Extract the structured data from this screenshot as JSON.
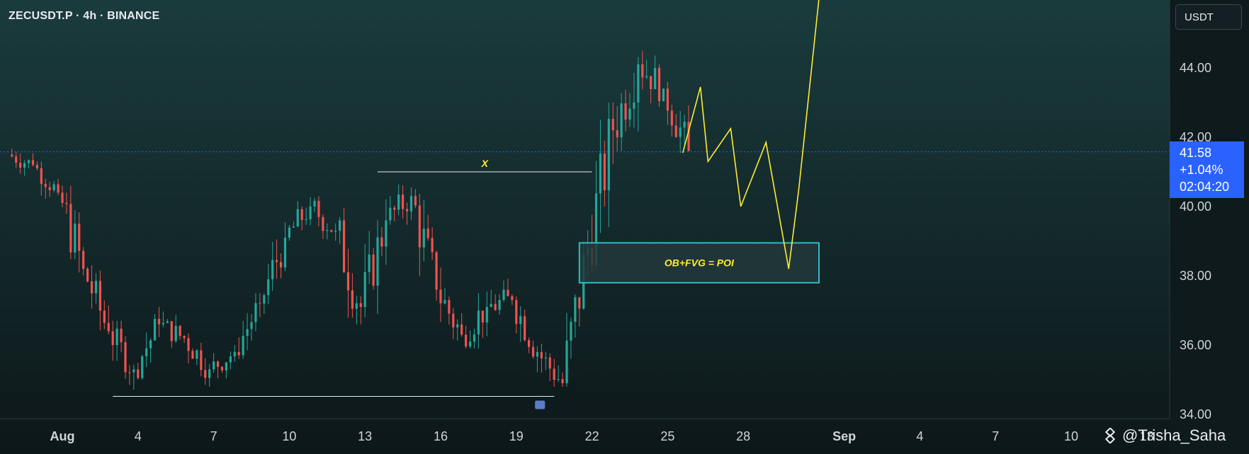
{
  "header": {
    "symbol_line": "ZECUSDT.P · 4h · BINANCE",
    "currency": "USDT"
  },
  "current_price": {
    "price": "41.58",
    "change": "+1.04%",
    "countdown": "02:04:20"
  },
  "annotations": {
    "level_label": "X",
    "zone_label": "OB+FVG = POI"
  },
  "watermark": {
    "text": "@Trisha_Saha"
  },
  "colors": {
    "bull": "#26a69a",
    "bear": "#ef5350",
    "projection": "#fdeb35",
    "zone_border": "#36b8c8",
    "price_line": "#2962ff"
  },
  "chart_data": {
    "type": "candlestick",
    "y_ticks": [
      "34.00",
      "36.00",
      "38.00",
      "40.00",
      "42.00",
      "44.00"
    ],
    "x_ticks": [
      "Aug",
      "4",
      "7",
      "10",
      "13",
      "16",
      "19",
      "22",
      "25",
      "28",
      "Sep",
      "4",
      "7",
      "10",
      "13"
    ],
    "ylim": [
      33.88,
      45.86
    ],
    "x_range": [
      "Jul 29",
      "Sep 14"
    ],
    "candles": [
      {
        "day": "Jul 30",
        "o": 41.5,
        "c": 41.2,
        "h": 41.9,
        "l": 40.7
      },
      {
        "day": "Jul 31",
        "o": 41.2,
        "c": 40.4,
        "h": 41.3,
        "l": 39.9
      },
      {
        "day": "Aug 1",
        "o": 40.4,
        "c": 38.2,
        "h": 40.6,
        "l": 37.3
      },
      {
        "day": "Aug 2",
        "o": 38.2,
        "c": 36.4,
        "h": 38.6,
        "l": 35.9
      },
      {
        "day": "Aug 3",
        "o": 36.4,
        "c": 35.3,
        "h": 36.7,
        "l": 34.6
      },
      {
        "day": "Aug 4",
        "o": 35.3,
        "c": 36.6,
        "h": 37.1,
        "l": 35.0
      },
      {
        "day": "Aug 5",
        "o": 36.6,
        "c": 36.2,
        "h": 37.3,
        "l": 35.8
      },
      {
        "day": "Aug 6",
        "o": 36.2,
        "c": 35.3,
        "h": 36.6,
        "l": 34.8
      },
      {
        "day": "Aug 7",
        "o": 35.3,
        "c": 35.8,
        "h": 36.4,
        "l": 34.9
      },
      {
        "day": "Aug 8",
        "o": 35.8,
        "c": 37.2,
        "h": 37.5,
        "l": 35.6
      },
      {
        "day": "Aug 9",
        "o": 37.2,
        "c": 39.1,
        "h": 39.6,
        "l": 36.9
      },
      {
        "day": "Aug 10",
        "o": 39.1,
        "c": 40.0,
        "h": 40.4,
        "l": 38.6
      },
      {
        "day": "Aug 11",
        "o": 40.0,
        "c": 39.3,
        "h": 40.3,
        "l": 38.4
      },
      {
        "day": "Aug 12",
        "o": 39.3,
        "c": 37.1,
        "h": 40.3,
        "l": 36.6
      },
      {
        "day": "Aug 13",
        "o": 37.1,
        "c": 39.6,
        "h": 40.2,
        "l": 36.8
      },
      {
        "day": "Aug 14",
        "o": 39.6,
        "c": 40.3,
        "h": 40.8,
        "l": 38.9
      },
      {
        "day": "Aug 15",
        "o": 40.3,
        "c": 37.6,
        "h": 40.5,
        "l": 36.9
      },
      {
        "day": "Aug 16",
        "o": 37.6,
        "c": 36.3,
        "h": 38.5,
        "l": 35.9
      },
      {
        "day": "Aug 17",
        "o": 36.3,
        "c": 37.1,
        "h": 38.0,
        "l": 35.9
      },
      {
        "day": "Aug 18",
        "o": 37.1,
        "c": 37.3,
        "h": 38.1,
        "l": 36.3
      },
      {
        "day": "Aug 19",
        "o": 37.3,
        "c": 35.8,
        "h": 37.4,
        "l": 35.2
      },
      {
        "day": "Aug 20",
        "o": 35.8,
        "c": 34.9,
        "h": 36.3,
        "l": 34.45
      },
      {
        "day": "Aug 21",
        "o": 34.9,
        "c": 38.8,
        "h": 39.4,
        "l": 34.8
      },
      {
        "day": "Aug 22",
        "o": 38.8,
        "c": 42.2,
        "h": 43.0,
        "l": 38.1
      },
      {
        "day": "Aug 23",
        "o": 42.2,
        "c": 44.1,
        "h": 45.1,
        "l": 41.6
      },
      {
        "day": "Aug 24",
        "o": 44.1,
        "c": 43.4,
        "h": 45.0,
        "l": 42.8
      },
      {
        "day": "Aug 25",
        "o": 43.4,
        "c": 41.6,
        "h": 43.6,
        "l": 40.9
      }
    ],
    "lines": {
      "current_price": 41.58,
      "x_level": {
        "price": 41.0,
        "from": "Aug 13.5",
        "to": "Aug 22"
      },
      "equal_lows": {
        "price": 34.52,
        "from": "Aug 3",
        "to": "Aug 20.5"
      }
    },
    "poi_zone": {
      "from": "Aug 21.5",
      "to": "Aug 31",
      "low": 37.8,
      "high": 38.95
    },
    "projection": [
      {
        "day": "Aug 25.6",
        "price": 41.55
      },
      {
        "day": "Aug 26.3",
        "price": 43.45
      },
      {
        "day": "Aug 26.6",
        "price": 41.3
      },
      {
        "day": "Aug 27.5",
        "price": 42.25
      },
      {
        "day": "Aug 27.9",
        "price": 40.0
      },
      {
        "day": "Aug 28.9",
        "price": 41.85
      },
      {
        "day": "Aug 29.8",
        "price": 38.2
      },
      {
        "day": "Aug 30.2",
        "price": 40.5
      },
      {
        "day": "Aug 31",
        "price": 46.0
      }
    ]
  }
}
